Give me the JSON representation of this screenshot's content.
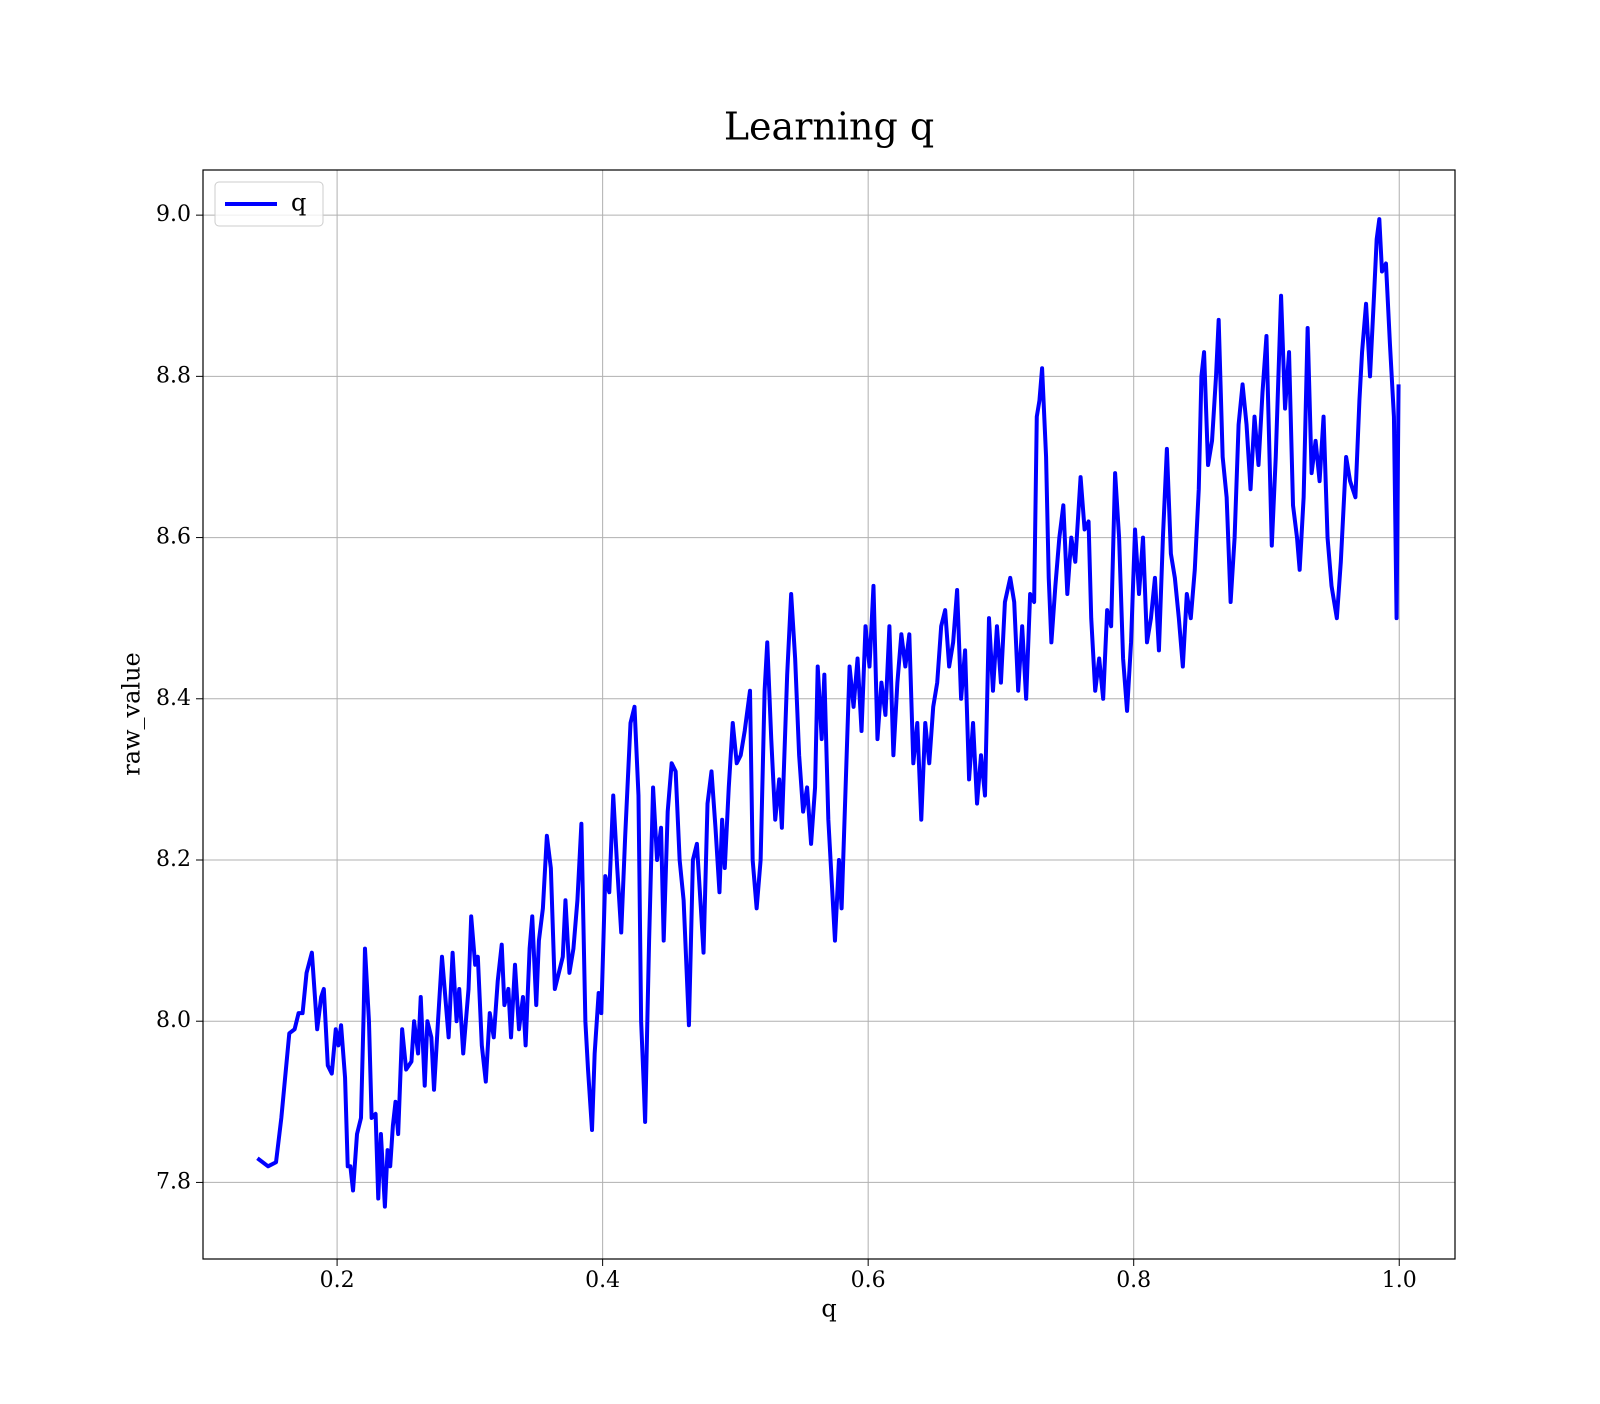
{
  "chart_data": {
    "type": "line",
    "title": "Learning q",
    "x_label": "q",
    "y_label": "raw_value",
    "xlim": [
      0.099,
      1.042
    ],
    "ylim": [
      7.705,
      9.056
    ],
    "xticks": [
      0.2,
      0.4,
      0.6,
      0.8,
      {
        "value": 1.0,
        "label": "1.0"
      }
    ],
    "yticks": [
      7.8,
      {
        "value": 8.0,
        "label": "8.0"
      },
      8.2,
      8.4,
      8.6,
      8.8,
      {
        "value": 9.0,
        "label": "9.0"
      }
    ],
    "grid": true,
    "legend": "upper left",
    "x": [
      0.14,
      0.148,
      0.154,
      0.158,
      0.164,
      0.168,
      0.171,
      0.174,
      0.177,
      0.181,
      0.185,
      0.188,
      0.19,
      0.193,
      0.196,
      0.199,
      0.201,
      0.203,
      0.206,
      0.208,
      0.21,
      0.212,
      0.215,
      0.218,
      0.22,
      0.221,
      0.224,
      0.226,
      0.229,
      0.231,
      0.233,
      0.236,
      0.238,
      0.24,
      0.242,
      0.244,
      0.246,
      0.249,
      0.252,
      0.256,
      0.258,
      0.261,
      0.263,
      0.266,
      0.268,
      0.271,
      0.273,
      0.276,
      0.279,
      0.282,
      0.284,
      0.287,
      0.29,
      0.292,
      0.295,
      0.297,
      0.299,
      0.301,
      0.304,
      0.306,
      0.309,
      0.312,
      0.315,
      0.318,
      0.321,
      0.324,
      0.326,
      0.329,
      0.331,
      0.334,
      0.337,
      0.34,
      0.342,
      0.345,
      0.347,
      0.35,
      0.352,
      0.355,
      0.358,
      0.361,
      0.364,
      0.367,
      0.37,
      0.372,
      0.375,
      0.378,
      0.381,
      0.384,
      0.387,
      0.389,
      0.392,
      0.394,
      0.397,
      0.399,
      0.402,
      0.405,
      0.408,
      0.411,
      0.414,
      0.417,
      0.421,
      0.424,
      0.427,
      0.429,
      0.431,
      0.432,
      0.435,
      0.438,
      0.441,
      0.444,
      0.446,
      0.449,
      0.452,
      0.455,
      0.458,
      0.461,
      0.465,
      0.468,
      0.471,
      0.474,
      0.476,
      0.479,
      0.482,
      0.485,
      0.488,
      0.49,
      0.492,
      0.495,
      0.498,
      0.501,
      0.504,
      0.507,
      0.511,
      0.513,
      0.516,
      0.519,
      0.522,
      0.524,
      0.527,
      0.53,
      0.533,
      0.535,
      0.539,
      0.542,
      0.545,
      0.548,
      0.551,
      0.554,
      0.557,
      0.56,
      0.562,
      0.565,
      0.567,
      0.57,
      0.572,
      0.575,
      0.578,
      0.58,
      0.583,
      0.586,
      0.589,
      0.592,
      0.595,
      0.598,
      0.601,
      0.604,
      0.607,
      0.61,
      0.613,
      0.616,
      0.619,
      0.622,
      0.625,
      0.628,
      0.631,
      0.634,
      0.637,
      0.64,
      0.643,
      0.646,
      0.649,
      0.652,
      0.655,
      0.658,
      0.661,
      0.664,
      0.667,
      0.67,
      0.673,
      0.676,
      0.679,
      0.682,
      0.685,
      0.688,
      0.691,
      0.694,
      0.697,
      0.7,
      0.703,
      0.707,
      0.71,
      0.713,
      0.716,
      0.719,
      0.722,
      0.725,
      0.727,
      0.729,
      0.731,
      0.734,
      0.736,
      0.738,
      0.741,
      0.744,
      0.747,
      0.75,
      0.753,
      0.756,
      0.76,
      0.763,
      0.766,
      0.768,
      0.771,
      0.774,
      0.777,
      0.78,
      0.783,
      0.786,
      0.789,
      0.792,
      0.795,
      0.798,
      0.801,
      0.804,
      0.807,
      0.81,
      0.813,
      0.816,
      0.819,
      0.822,
      0.825,
      0.828,
      0.831,
      0.834,
      0.837,
      0.84,
      0.843,
      0.846,
      0.849,
      0.851,
      0.853,
      0.856,
      0.859,
      0.862,
      0.864,
      0.867,
      0.87,
      0.873,
      0.876,
      0.879,
      0.882,
      0.885,
      0.888,
      0.891,
      0.894,
      0.897,
      0.9,
      0.904,
      0.907,
      0.911,
      0.914,
      0.917,
      0.92,
      0.923,
      0.925,
      0.928,
      0.931,
      0.934,
      0.937,
      0.94,
      0.943,
      0.946,
      0.949,
      0.953,
      0.956,
      0.96,
      0.963,
      0.967,
      0.97,
      0.972,
      0.975,
      0.978,
      0.981,
      0.983,
      0.985,
      0.987,
      0.99,
      0.993,
      0.996,
      0.998,
      0.9995
    ],
    "series": [
      {
        "name": "q",
        "color": "#0000ff",
        "values": [
          7.83,
          7.82,
          7.825,
          7.88,
          7.985,
          7.99,
          8.01,
          8.01,
          8.06,
          8.085,
          7.99,
          8.03,
          8.04,
          7.945,
          7.935,
          7.99,
          7.97,
          7.995,
          7.93,
          7.82,
          7.82,
          7.79,
          7.86,
          7.88,
          8.01,
          8.09,
          8.0,
          7.88,
          7.885,
          7.78,
          7.86,
          7.77,
          7.84,
          7.82,
          7.87,
          7.9,
          7.86,
          7.99,
          7.94,
          7.95,
          8.0,
          7.96,
          8.03,
          7.92,
          8.0,
          7.98,
          7.915,
          8.0,
          8.08,
          8.02,
          7.98,
          8.085,
          8.0,
          8.04,
          7.96,
          8.0,
          8.04,
          8.13,
          8.07,
          8.08,
          7.97,
          7.925,
          8.01,
          7.98,
          8.05,
          8.095,
          8.02,
          8.04,
          7.98,
          8.07,
          7.99,
          8.03,
          7.97,
          8.09,
          8.13,
          8.02,
          8.1,
          8.14,
          8.23,
          8.19,
          8.04,
          8.06,
          8.08,
          8.15,
          8.06,
          8.09,
          8.15,
          8.245,
          8.0,
          7.94,
          7.865,
          7.96,
          8.035,
          8.01,
          8.18,
          8.16,
          8.28,
          8.19,
          8.11,
          8.23,
          8.37,
          8.39,
          8.28,
          8.0,
          7.92,
          7.875,
          8.1,
          8.29,
          8.2,
          8.24,
          8.1,
          8.26,
          8.32,
          8.31,
          8.2,
          8.15,
          7.995,
          8.2,
          8.22,
          8.14,
          8.085,
          8.27,
          8.31,
          8.24,
          8.16,
          8.25,
          8.19,
          8.29,
          8.37,
          8.32,
          8.33,
          8.36,
          8.41,
          8.2,
          8.14,
          8.2,
          8.41,
          8.47,
          8.35,
          8.25,
          8.3,
          8.24,
          8.43,
          8.53,
          8.45,
          8.33,
          8.26,
          8.29,
          8.22,
          8.29,
          8.44,
          8.35,
          8.43,
          8.25,
          8.19,
          8.1,
          8.2,
          8.14,
          8.29,
          8.44,
          8.39,
          8.45,
          8.36,
          8.49,
          8.44,
          8.54,
          8.35,
          8.42,
          8.38,
          8.49,
          8.33,
          8.42,
          8.48,
          8.44,
          8.48,
          8.32,
          8.37,
          8.25,
          8.37,
          8.32,
          8.39,
          8.42,
          8.49,
          8.51,
          8.44,
          8.47,
          8.535,
          8.4,
          8.46,
          8.3,
          8.37,
          8.27,
          8.33,
          8.28,
          8.5,
          8.41,
          8.49,
          8.42,
          8.52,
          8.55,
          8.52,
          8.41,
          8.49,
          8.4,
          8.53,
          8.52,
          8.75,
          8.77,
          8.81,
          8.7,
          8.55,
          8.47,
          8.54,
          8.6,
          8.64,
          8.53,
          8.6,
          8.57,
          8.675,
          8.61,
          8.62,
          8.5,
          8.41,
          8.45,
          8.4,
          8.51,
          8.49,
          8.68,
          8.6,
          8.45,
          8.385,
          8.47,
          8.61,
          8.53,
          8.6,
          8.47,
          8.5,
          8.55,
          8.46,
          8.6,
          8.71,
          8.58,
          8.55,
          8.5,
          8.44,
          8.53,
          8.5,
          8.56,
          8.66,
          8.8,
          8.83,
          8.69,
          8.72,
          8.8,
          8.87,
          8.7,
          8.65,
          8.52,
          8.6,
          8.74,
          8.79,
          8.74,
          8.66,
          8.75,
          8.69,
          8.78,
          8.85,
          8.59,
          8.7,
          8.9,
          8.76,
          8.83,
          8.64,
          8.6,
          8.56,
          8.65,
          8.86,
          8.68,
          8.72,
          8.67,
          8.75,
          8.6,
          8.54,
          8.5,
          8.57,
          8.7,
          8.67,
          8.65,
          8.77,
          8.83,
          8.89,
          8.8,
          8.9,
          8.97,
          8.995,
          8.93,
          8.94,
          8.84,
          8.75,
          8.5,
          8.79
        ]
      }
    ]
  }
}
